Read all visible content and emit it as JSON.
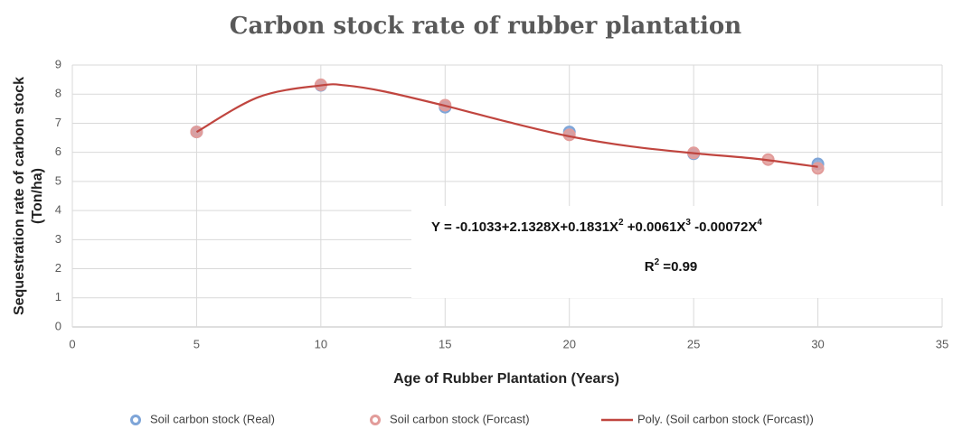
{
  "chart_data": {
    "type": "scatter",
    "title": "Carbon stock rate of rubber plantation",
    "x_label": "Age of Rubber Plantation (Years)",
    "y_label": [
      "Sequestration rate of carbon stock",
      "(Ton/ha)"
    ],
    "xlim": [
      0,
      35
    ],
    "xticks": [
      0,
      5,
      10,
      15,
      20,
      25,
      30,
      35
    ],
    "ylim": [
      0,
      9
    ],
    "yticks": [
      0,
      1,
      2,
      3,
      4,
      5,
      6,
      7,
      8,
      9
    ],
    "grid": true,
    "legend": "bottom",
    "series": [
      {
        "name": "Soil carbon stock (Real)",
        "color": "#7ea5d8",
        "marker": "circle",
        "x": [
          5,
          10,
          15,
          20,
          25,
          30
        ],
        "values": [
          6.7,
          8.3,
          7.55,
          6.7,
          5.95,
          5.6
        ]
      },
      {
        "name": "Soil carbon stock (Forcast)",
        "color": "#e29c9a",
        "marker": "circle",
        "x": [
          5,
          10,
          15,
          20,
          25,
          28,
          30
        ],
        "values": [
          6.7,
          8.32,
          7.62,
          6.6,
          5.98,
          5.75,
          5.45
        ]
      },
      {
        "name": "Poly. (Soil carbon stock (Forcast))",
        "color": "#c0453f",
        "marker": "line",
        "x": [
          5,
          7.5,
          10,
          11,
          12.5,
          15,
          17.5,
          20,
          22.5,
          25,
          27.5,
          30
        ],
        "values": [
          6.7,
          7.9,
          8.3,
          8.3,
          8.1,
          7.6,
          7.05,
          6.55,
          6.2,
          5.97,
          5.78,
          5.5
        ]
      }
    ],
    "equation": [
      "Y = -0.1033+2.1328X+0.1831X",
      "2",
      " +0.0061X",
      "3",
      " -0.00072X",
      "4"
    ],
    "r_squared": [
      "R",
      "2",
      " =0.99"
    ]
  }
}
